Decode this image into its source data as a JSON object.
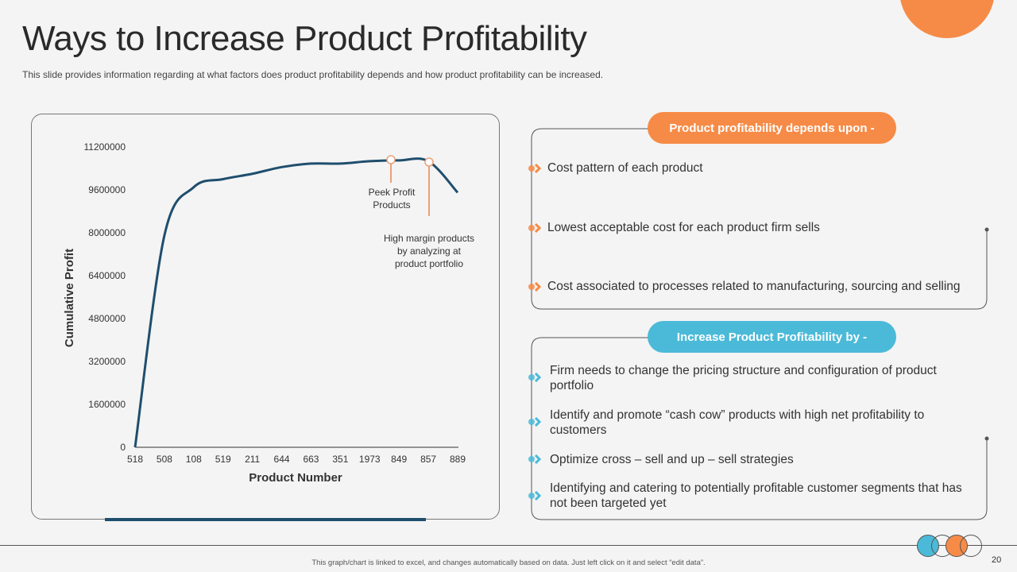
{
  "title": "Ways to Increase Product Profitability",
  "subtitle": "This slide provides  information  regarding  at what factors does product profitability depends and  how product profitability can be increased.",
  "colors": {
    "orange": "#f68b47",
    "blue": "#4bbad8",
    "line": "#1f4e6e",
    "annotation": "#e8a17a"
  },
  "chart_data": {
    "type": "line",
    "xlabel": "Product Number",
    "ylabel": "Cumulative Profit",
    "categories": [
      "518",
      "508",
      "108",
      "519",
      "211",
      "644",
      "663",
      "351",
      "1973",
      "849",
      "857",
      "889"
    ],
    "values": [
      0,
      7900000,
      9700000,
      10000000,
      10200000,
      10450000,
      10580000,
      10580000,
      10670000,
      10700000,
      10670000,
      9500000
    ],
    "yticks": [
      "0",
      "1600000",
      "3200000",
      "4800000",
      "6400000",
      "8000000",
      "9600000",
      "11200000"
    ],
    "ylim": [
      0,
      11200000
    ],
    "grid": false,
    "annotations": [
      {
        "line1": "Peek Profit",
        "line2": "Products"
      },
      {
        "line1": "High margin products",
        "line2": "by analyzing at",
        "line3": "product portfolio"
      }
    ]
  },
  "depends": {
    "heading": "Product profitability depends upon  -",
    "items": [
      "Cost pattern of each product",
      "Lowest acceptable cost for each product firm sells",
      "Cost associated to  processes related to manufacturing,  sourcing and selling"
    ]
  },
  "increase": {
    "heading": "Increase Product Profitability by -",
    "items": [
      "Firm needs to change the pricing structure and configuration of product portfolio",
      "Identify  and promote “cash cow” products with high net profitability to customers",
      "Optimize cross – sell and up – sell strategies",
      "Identifying  and catering to potentially profitable customer segments that has not been targeted yet"
    ]
  },
  "footer": {
    "note": "This graph/chart is linked to excel, and changes automatically based on data. Just left click on it and select “edit data”.",
    "page": "20"
  }
}
